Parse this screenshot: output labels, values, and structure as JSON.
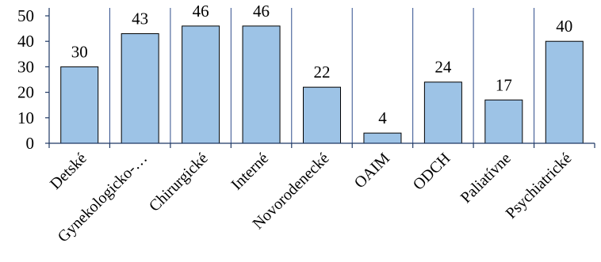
{
  "chart_data": {
    "type": "bar",
    "categories": [
      "Detské",
      "Gynekologicko-…",
      "Chirurgické",
      "Interné",
      "Novorodenecké",
      "OAIM",
      "ODCH",
      "Paliatívne",
      "Psychiatrické"
    ],
    "values": [
      30,
      43,
      46,
      46,
      22,
      4,
      24,
      17,
      40
    ],
    "data_labels": [
      "30",
      "43",
      "46",
      "46",
      "22",
      "4",
      "24",
      "17",
      "40"
    ],
    "yticks": [
      "0",
      "10",
      "20",
      "30",
      "40",
      "50"
    ],
    "ylim": [
      0,
      50
    ],
    "grid": "vertical separators between categories",
    "legend": "none",
    "colors": {
      "bar_fill": "#9DC3E6",
      "bar_stroke": "#000000",
      "axis": "#1F3864",
      "separator": "#2E4C8C"
    }
  }
}
